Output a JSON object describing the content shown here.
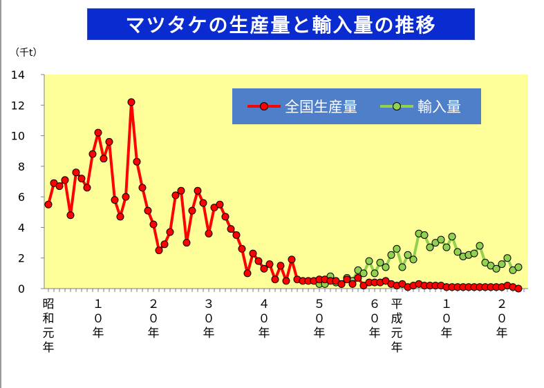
{
  "chart_data": {
    "type": "line",
    "title": "マツタケの生産量と輸入量の推移",
    "unit_label": "（千t）",
    "ylim": [
      0,
      14
    ],
    "yticks": [
      0,
      2,
      4,
      6,
      8,
      10,
      12,
      14
    ],
    "ytick_labels": [
      "0",
      "2",
      "4",
      "6",
      "8",
      "10",
      "12",
      "14"
    ],
    "grid": false,
    "legend_position": "top-right",
    "x_start_year": 1926,
    "x_end_year": 2012,
    "x_tick_labels": [
      {
        "year": 1926,
        "text": "昭和元年"
      },
      {
        "year": 1935,
        "text": "１０年"
      },
      {
        "year": 1945,
        "text": "２０年"
      },
      {
        "year": 1955,
        "text": "３０年"
      },
      {
        "year": 1965,
        "text": "４０年"
      },
      {
        "year": 1975,
        "text": "５０年"
      },
      {
        "year": 1985,
        "text": "６０年"
      },
      {
        "year": 1989,
        "text": "平成元年"
      },
      {
        "year": 1998,
        "text": "１０年"
      },
      {
        "year": 2008,
        "text": "２０年"
      }
    ],
    "series": [
      {
        "name": "全国生産量",
        "color": "#ff0000",
        "start_year": 1926,
        "values": [
          5.5,
          6.9,
          6.7,
          7.1,
          4.8,
          7.6,
          7.2,
          6.6,
          8.8,
          10.2,
          8.5,
          9.6,
          5.8,
          4.7,
          6.0,
          12.2,
          8.3,
          6.6,
          5.1,
          4.2,
          2.5,
          2.9,
          3.7,
          6.1,
          6.4,
          3.0,
          5.1,
          6.4,
          5.6,
          3.6,
          5.3,
          5.5,
          4.7,
          3.9,
          3.5,
          2.6,
          1.0,
          2.3,
          1.8,
          1.3,
          1.6,
          0.6,
          1.5,
          0.5,
          1.9,
          0.6,
          0.5,
          0.5,
          0.5,
          0.6,
          0.6,
          0.5,
          0.5,
          0.3,
          0.6,
          0.3,
          0.7,
          0.2,
          0.4,
          0.4,
          0.4,
          0.5,
          0.3,
          0.2,
          0.3,
          0.1,
          0.2,
          0.3,
          0.2,
          0.2,
          0.2,
          0.2,
          0.1,
          0.1,
          0.1,
          0.1,
          0.1,
          0.1,
          0.1,
          0.1,
          0.1,
          0.1,
          0.1,
          0.2,
          0.1,
          0.0
        ]
      },
      {
        "name": "輸入量",
        "color": "#92d050",
        "start_year": 1975,
        "values": [
          0.3,
          0.3,
          0.8,
          0.4,
          0.3,
          0.7,
          0.5,
          1.2,
          1.0,
          1.8,
          1.0,
          1.7,
          1.4,
          2.2,
          2.6,
          1.4,
          2.2,
          1.9,
          3.6,
          3.5,
          2.7,
          3.0,
          3.2,
          2.7,
          3.4,
          2.4,
          2.1,
          2.2,
          2.3,
          2.8,
          1.7,
          1.5,
          1.3,
          1.6,
          2.0,
          1.2,
          1.4
        ]
      }
    ]
  }
}
